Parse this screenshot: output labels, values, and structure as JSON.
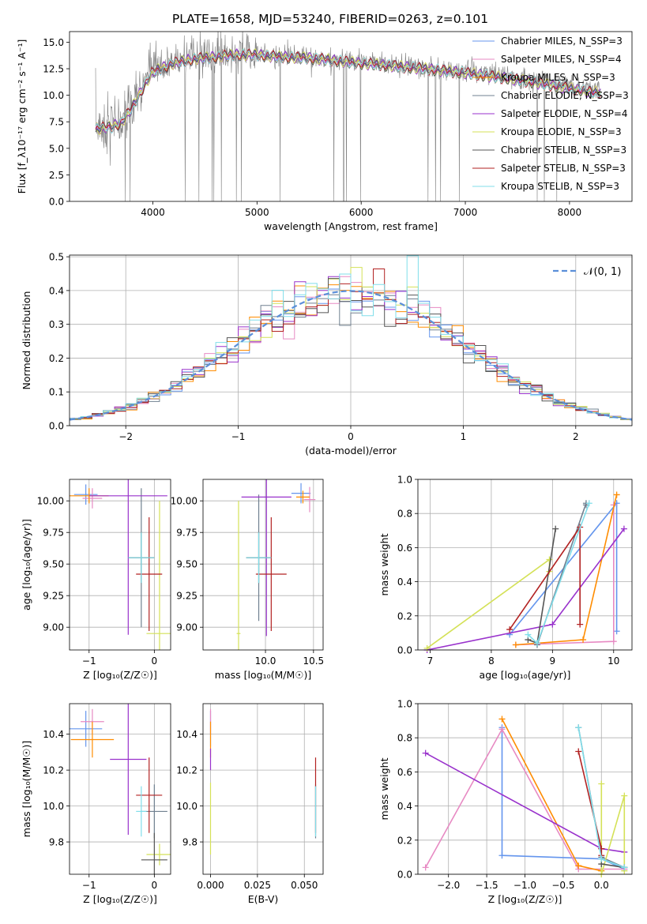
{
  "figure": {
    "title": "PLATE=1658, MJD=53240, FIBERID=0263, z=0.101",
    "series_colors": [
      "#6495ed",
      "#e78ac3",
      "#ff8c00",
      "#708090",
      "#9932cc",
      "#d4e157",
      "#555555",
      "#b22222",
      "#80deea"
    ]
  },
  "chart_data": [
    {
      "id": "spectrum",
      "type": "line",
      "xlabel": "wavelength [Angstrom, rest frame]",
      "ylabel": "Flux [f_λ10⁻¹⁷ erg cm⁻² s⁻¹ A⁻¹]",
      "xlim": [
        3200,
        8600
      ],
      "ylim": [
        0,
        16
      ],
      "xticks": [
        4000,
        5000,
        6000,
        7000,
        8000
      ],
      "yticks": [
        0.0,
        2.5,
        5.0,
        7.5,
        10.0,
        12.5,
        15.0
      ],
      "data_color": "#808080",
      "data_envelope": {
        "x": [
          3450,
          3600,
          3700,
          3800,
          3900,
          4000,
          4200,
          4400,
          4600,
          4800,
          5000,
          5200,
          5500,
          6000,
          6500,
          7000,
          7400,
          7800,
          8200
        ],
        "y": [
          7.0,
          7.2,
          7.6,
          9.0,
          10.8,
          12.4,
          13.2,
          13.6,
          13.8,
          14.0,
          14.0,
          13.8,
          13.7,
          13.2,
          12.8,
          12.3,
          11.8,
          11.2,
          10.5
        ]
      },
      "series": [
        {
          "name": "Chabrier MILES, N_SSP=3",
          "color": "#6495ed"
        },
        {
          "name": "Salpeter MILES, N_SSP=4",
          "color": "#e78ac3"
        },
        {
          "name": "Kroupa MILES, N_SSP=3",
          "color": "#ff8c00"
        },
        {
          "name": "Chabrier ELODIE, N_SSP=3",
          "color": "#708090"
        },
        {
          "name": "Salpeter ELODIE, N_SSP=4",
          "color": "#9932cc"
        },
        {
          "name": "Kroupa ELODIE, N_SSP=3",
          "color": "#d4e157"
        },
        {
          "name": "Chabrier STELIB, N_SSP=3",
          "color": "#555555"
        },
        {
          "name": "Salpeter STELIB, N_SSP=3",
          "color": "#b22222"
        },
        {
          "name": "Kroupa STELIB, N_SSP=3",
          "color": "#80deea"
        }
      ]
    },
    {
      "id": "residuals",
      "type": "step",
      "xlabel": "(data-model)/error",
      "ylabel": "Normed distribution",
      "xlim": [
        -2.5,
        2.5
      ],
      "ylim": [
        0,
        0.505
      ],
      "xticks": [
        -2,
        -1,
        0,
        1,
        2
      ],
      "yticks": [
        0.0,
        0.1,
        0.2,
        0.3,
        0.4,
        0.5
      ],
      "grid": true,
      "legend_position": "upper right",
      "gaussian_label": "𝒩(0, 1)",
      "gaussian_color": "#5b8fd9",
      "bin_width": 0.1
    },
    {
      "id": "age-vs-Z",
      "type": "errorbar",
      "xlabel": "Z [log₁₀(Z/Z☉)]",
      "ylabel": "age [log₁₀(age/yr)]",
      "xlim": [
        -1.3,
        0.25
      ],
      "ylim": [
        8.82,
        10.17
      ],
      "xticks": [
        -1,
        0
      ],
      "yticks": [
        9.0,
        9.25,
        9.5,
        9.75,
        10.0
      ],
      "points": [
        {
          "x": -1.05,
          "xerr": 0.18,
          "y": 10.05,
          "yerr": 0.08,
          "color": "#6495ed"
        },
        {
          "x": -0.95,
          "xerr": 0.15,
          "y": 10.02,
          "yerr": 0.08,
          "color": "#e78ac3"
        },
        {
          "x": -1.0,
          "xerr": 0.3,
          "y": 10.04,
          "yerr": 0.06,
          "color": "#ff8c00"
        },
        {
          "x": -0.2,
          "xerr": 0.2,
          "y": 9.55,
          "yerr": 0.55,
          "color": "#708090"
        },
        {
          "x": -0.4,
          "xerr": 0.6,
          "y": 10.04,
          "yerr": 1.1,
          "color": "#9932cc"
        },
        {
          "x": 0.08,
          "xerr": 0.2,
          "y": 8.95,
          "yerr": 1.05,
          "color": "#d4e157"
        },
        {
          "x": -0.2,
          "xerr": 0.2,
          "y": 9.55,
          "yerr": 0.2,
          "color": "#555555"
        },
        {
          "x": -0.08,
          "xerr": 0.2,
          "y": 9.42,
          "yerr": 0.45,
          "color": "#b22222"
        },
        {
          "x": -0.2,
          "xerr": 0.2,
          "y": 9.55,
          "yerr": 0.2,
          "color": "#80deea"
        }
      ]
    },
    {
      "id": "age-vs-mass",
      "type": "errorbar",
      "xlabel": "mass [log₁₀(M/M☉)]",
      "ylabel": "",
      "xlim": [
        9.35,
        10.6
      ],
      "ylim": [
        8.82,
        10.17
      ],
      "xticks": [
        10.0,
        10.5
      ],
      "yticks": [
        9.0,
        9.25,
        9.5,
        9.75,
        10.0
      ],
      "points": [
        {
          "x": 10.37,
          "xerr": 0.1,
          "y": 10.06,
          "yerr": 0.08,
          "color": "#6495ed"
        },
        {
          "x": 10.46,
          "xerr": 0.06,
          "y": 10.01,
          "yerr": 0.1,
          "color": "#e78ac3"
        },
        {
          "x": 10.39,
          "xerr": 0.07,
          "y": 10.03,
          "yerr": 0.05,
          "color": "#ff8c00"
        },
        {
          "x": 9.93,
          "xerr": 0.13,
          "y": 9.55,
          "yerr": 0.5,
          "color": "#708090"
        },
        {
          "x": 10.01,
          "xerr": 0.26,
          "y": 10.03,
          "yerr": 1.1,
          "color": "#9932cc"
        },
        {
          "x": 9.72,
          "xerr": 0.02,
          "y": 8.95,
          "yerr": 1.05,
          "color": "#d4e157"
        },
        {
          "x": 9.93,
          "xerr": 0.13,
          "y": 9.55,
          "yerr": 0.2,
          "color": "#555555"
        },
        {
          "x": 10.06,
          "xerr": 0.16,
          "y": 9.42,
          "yerr": 0.45,
          "color": "#b22222"
        },
        {
          "x": 9.93,
          "xerr": 0.13,
          "y": 9.55,
          "yerr": 0.2,
          "color": "#80deea"
        }
      ]
    },
    {
      "id": "weight-vs-age",
      "type": "line",
      "xlabel": "age [log₁₀(age/yr)]",
      "ylabel": "mass weight",
      "xlim": [
        6.8,
        10.3
      ],
      "ylim": [
        0,
        1
      ],
      "xticks": [
        7,
        8,
        9,
        10
      ],
      "yticks": [
        0.0,
        0.2,
        0.4,
        0.6,
        0.8,
        1.0
      ],
      "grid": true,
      "series": [
        {
          "color": "#6495ed",
          "x": [
            8.3,
            10.05,
            10.05
          ],
          "y": [
            0.09,
            0.86,
            0.11
          ]
        },
        {
          "color": "#e78ac3",
          "x": [
            8.4,
            10.0,
            10.0
          ],
          "y": [
            0.03,
            0.05,
            0.85
          ]
        },
        {
          "color": "#ff8c00",
          "x": [
            8.4,
            9.5,
            10.05
          ],
          "y": [
            0.03,
            0.06,
            0.91
          ]
        },
        {
          "color": "#708090",
          "x": [
            8.75,
            9.55,
            9.55
          ],
          "y": [
            0.03,
            0.86,
            0.85
          ]
        },
        {
          "color": "#9932cc",
          "x": [
            6.95,
            9.0,
            10.17
          ],
          "y": [
            0.0,
            0.15,
            0.71
          ]
        },
        {
          "color": "#d4e157",
          "x": [
            6.95,
            8.95,
            8.95
          ],
          "y": [
            0.01,
            0.53,
            0.46
          ]
        },
        {
          "color": "#555555",
          "x": [
            8.6,
            8.75,
            9.05
          ],
          "y": [
            0.06,
            0.04,
            0.71
          ]
        },
        {
          "color": "#b22222",
          "x": [
            8.3,
            9.45,
            9.45
          ],
          "y": [
            0.12,
            0.72,
            0.15
          ]
        },
        {
          "color": "#80deea",
          "x": [
            8.6,
            8.75,
            9.6
          ],
          "y": [
            0.09,
            0.04,
            0.86
          ]
        }
      ]
    },
    {
      "id": "mass-vs-Z",
      "type": "errorbar",
      "xlabel": "Z [log₁₀(Z/Z☉)]",
      "ylabel": "mass [log₁₀(M/M☉)]",
      "xlim": [
        -1.3,
        0.25
      ],
      "ylim": [
        9.62,
        10.57
      ],
      "xticks": [
        -1,
        0
      ],
      "yticks": [
        9.8,
        10.0,
        10.2,
        10.4
      ],
      "points": [
        {
          "x": -1.05,
          "xerr": 0.25,
          "y": 10.43,
          "yerr": 0.1,
          "color": "#6495ed"
        },
        {
          "x": -0.95,
          "xerr": 0.18,
          "y": 10.47,
          "yerr": 0.07,
          "color": "#e78ac3"
        },
        {
          "x": -0.95,
          "xerr": 0.33,
          "y": 10.37,
          "yerr": 0.1,
          "color": "#ff8c00"
        },
        {
          "x": 0.0,
          "xerr": 0.2,
          "y": 9.97,
          "yerr": 0.15,
          "color": "#708090"
        },
        {
          "x": -0.4,
          "xerr": 0.28,
          "y": 10.26,
          "yerr": 0.42,
          "color": "#9932cc"
        },
        {
          "x": 0.08,
          "xerr": 0.2,
          "y": 9.73,
          "yerr": 0.06,
          "color": "#d4e157"
        },
        {
          "x": 0.0,
          "xerr": 0.2,
          "y": 9.7,
          "yerr": 0.15,
          "color": "#555555"
        },
        {
          "x": -0.08,
          "xerr": 0.2,
          "y": 10.06,
          "yerr": 0.21,
          "color": "#b22222"
        },
        {
          "x": -0.2,
          "xerr": 0.08,
          "y": 9.97,
          "yerr": 0.14,
          "color": "#80deea"
        }
      ]
    },
    {
      "id": "mass-vs-ebv",
      "type": "errorbar",
      "xlabel": "E(B-V)",
      "ylabel": "",
      "xlim": [
        -0.004,
        0.06
      ],
      "ylim": [
        9.62,
        10.57
      ],
      "xticks": [
        0.0,
        0.025,
        0.05
      ],
      "yticks": [
        9.8,
        10.0,
        10.2,
        10.4
      ],
      "points": [
        {
          "x": 0.0,
          "xerr": 0.0,
          "y": 10.43,
          "yerr": 0.1,
          "color": "#6495ed"
        },
        {
          "x": 0.0,
          "xerr": 0.0,
          "y": 10.47,
          "yerr": 0.07,
          "color": "#e78ac3"
        },
        {
          "x": 0.0,
          "xerr": 0.0,
          "y": 10.37,
          "yerr": 0.1,
          "color": "#ff8c00"
        },
        {
          "x": 0.056,
          "xerr": 0.0,
          "y": 9.97,
          "yerr": 0.15,
          "color": "#708090"
        },
        {
          "x": 0.0,
          "xerr": 0.0,
          "y": 10.26,
          "yerr": 0.06,
          "color": "#9932cc"
        },
        {
          "x": 0.0,
          "xerr": 0.0,
          "y": 9.93,
          "yerr": 0.2,
          "color": "#d4e157"
        },
        {
          "x": 0.056,
          "xerr": 0.0,
          "y": 10.06,
          "yerr": 0.21,
          "color": "#b22222"
        },
        {
          "x": 0.056,
          "xerr": 0.0,
          "y": 9.97,
          "yerr": 0.14,
          "color": "#80deea"
        }
      ]
    },
    {
      "id": "weight-vs-Z",
      "type": "line",
      "xlabel": "Z [log₁₀(Z/Z☉)]",
      "ylabel": "mass weight",
      "xlim": [
        -2.4,
        0.4
      ],
      "ylim": [
        0,
        1
      ],
      "xticks": [
        -2.0,
        -1.5,
        -1.0,
        -0.5,
        0.0
      ],
      "yticks": [
        0.0,
        0.2,
        0.4,
        0.6,
        0.8,
        1.0
      ],
      "grid": true,
      "series": [
        {
          "color": "#6495ed",
          "x": [
            -1.3,
            -1.3,
            0.0,
            0.3
          ],
          "y": [
            0.86,
            0.11,
            0.09,
            0.03
          ]
        },
        {
          "color": "#e78ac3",
          "x": [
            -2.3,
            -1.3,
            -0.3,
            0.3
          ],
          "y": [
            0.04,
            0.85,
            0.03,
            0.03
          ]
        },
        {
          "color": "#ff8c00",
          "x": [
            -1.3,
            -0.3,
            0.0
          ],
          "y": [
            0.91,
            0.05,
            0.02
          ]
        },
        {
          "color": "#708090",
          "x": [
            -0.3,
            0.0,
            0.3
          ],
          "y": [
            0.86,
            0.1,
            0.04
          ]
        },
        {
          "color": "#9932cc",
          "x": [
            -2.3,
            0.0,
            0.3
          ],
          "y": [
            0.71,
            0.15,
            0.13
          ]
        },
        {
          "color": "#d4e157",
          "x": [
            0.0,
            0.0,
            0.3,
            0.3
          ],
          "y": [
            0.53,
            0.0,
            0.46,
            0.02
          ]
        },
        {
          "color": "#555555",
          "x": [
            0.0,
            0.3
          ],
          "y": [
            0.06,
            0.04
          ]
        },
        {
          "color": "#b22222",
          "x": [
            -0.3,
            0.0,
            0.0
          ],
          "y": [
            0.72,
            0.15,
            0.11
          ]
        },
        {
          "color": "#80deea",
          "x": [
            -0.3,
            0.0,
            0.3
          ],
          "y": [
            0.86,
            0.09,
            0.04
          ]
        }
      ]
    }
  ]
}
